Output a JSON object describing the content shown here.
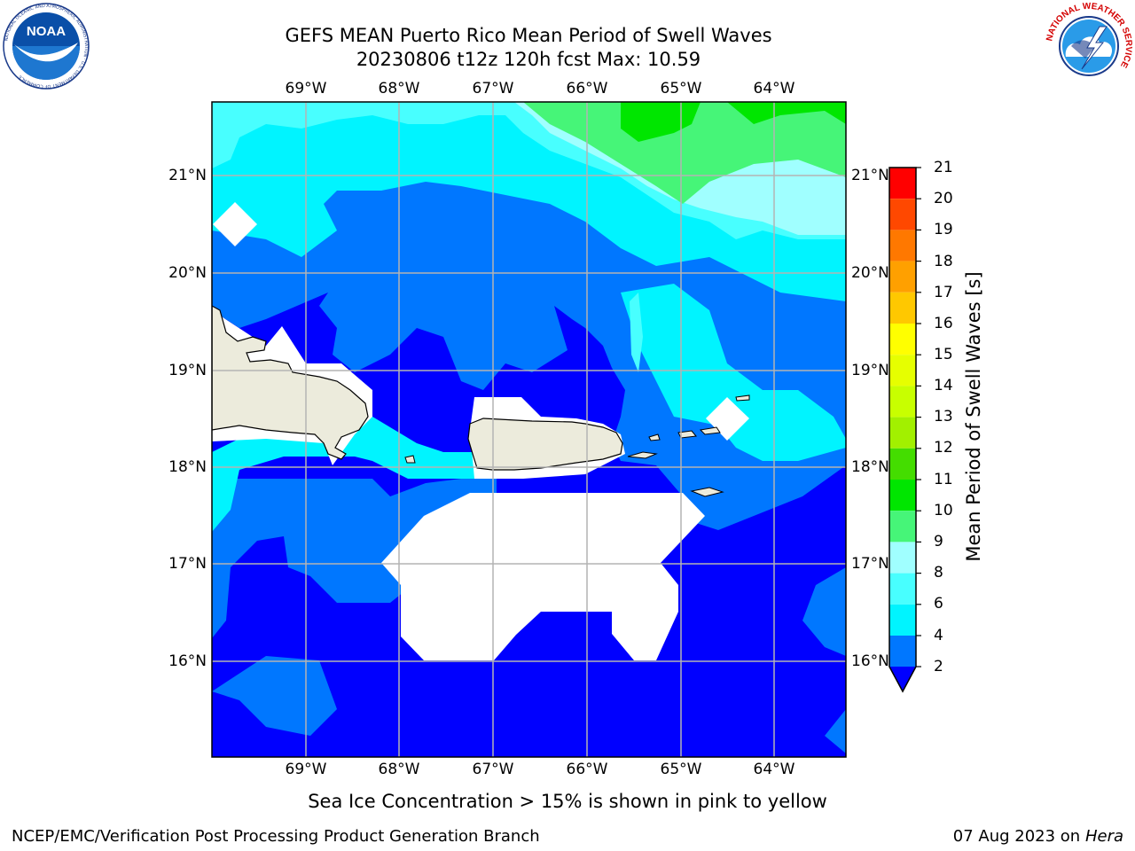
{
  "header": {
    "title_line1": "GEFS MEAN Puerto Rico Mean Period of Swell Waves",
    "title_line2": "20230806 t12z 120h fcst   Max: 10.59"
  },
  "logos": {
    "noaa": {
      "text": "NOAA",
      "ring_text": "NATIONAL OCEANIC AND ATMOSPHERIC ADMINISTRATION · U.S. DEPARTMENT OF COMMERCE"
    },
    "nws": {
      "ring_text": "NATIONAL WEATHER SERVICE"
    }
  },
  "map": {
    "lon_labels": [
      "69°W",
      "68°W",
      "67°W",
      "66°W",
      "65°W",
      "64°W"
    ],
    "lat_labels": [
      "21°N",
      "20°N",
      "19°N",
      "18°N",
      "17°N",
      "16°N"
    ],
    "lon_range": [
      -70.0,
      -63.25
    ],
    "lat_range": [
      15.0,
      21.75
    ]
  },
  "colorbar": {
    "label": "Mean Period of Swell Waves [s]",
    "ticks": [
      "2",
      "4",
      "6",
      "8",
      "9",
      "10",
      "11",
      "12",
      "13",
      "14",
      "15",
      "16",
      "17",
      "18",
      "19",
      "20",
      "21"
    ],
    "colors": [
      "#0000ff",
      "#0077ff",
      "#00f4ff",
      "#48ffff",
      "#a0ffff",
      "#46f578",
      "#00e600",
      "#44dd00",
      "#7ad600",
      "#c8ff00",
      "#e6ff00",
      "#ffff00",
      "#ffc800",
      "#ffa000",
      "#ff7800",
      "#ff4800",
      "#ff0000"
    ],
    "extend": "min"
  },
  "footer": {
    "note": "Sea Ice Concentration > 15% is shown in pink to yellow",
    "left": "NCEP/EMC/Verification Post Processing Product Generation Branch",
    "date": "07 Aug 2023 on",
    "machine": "Hera"
  }
}
